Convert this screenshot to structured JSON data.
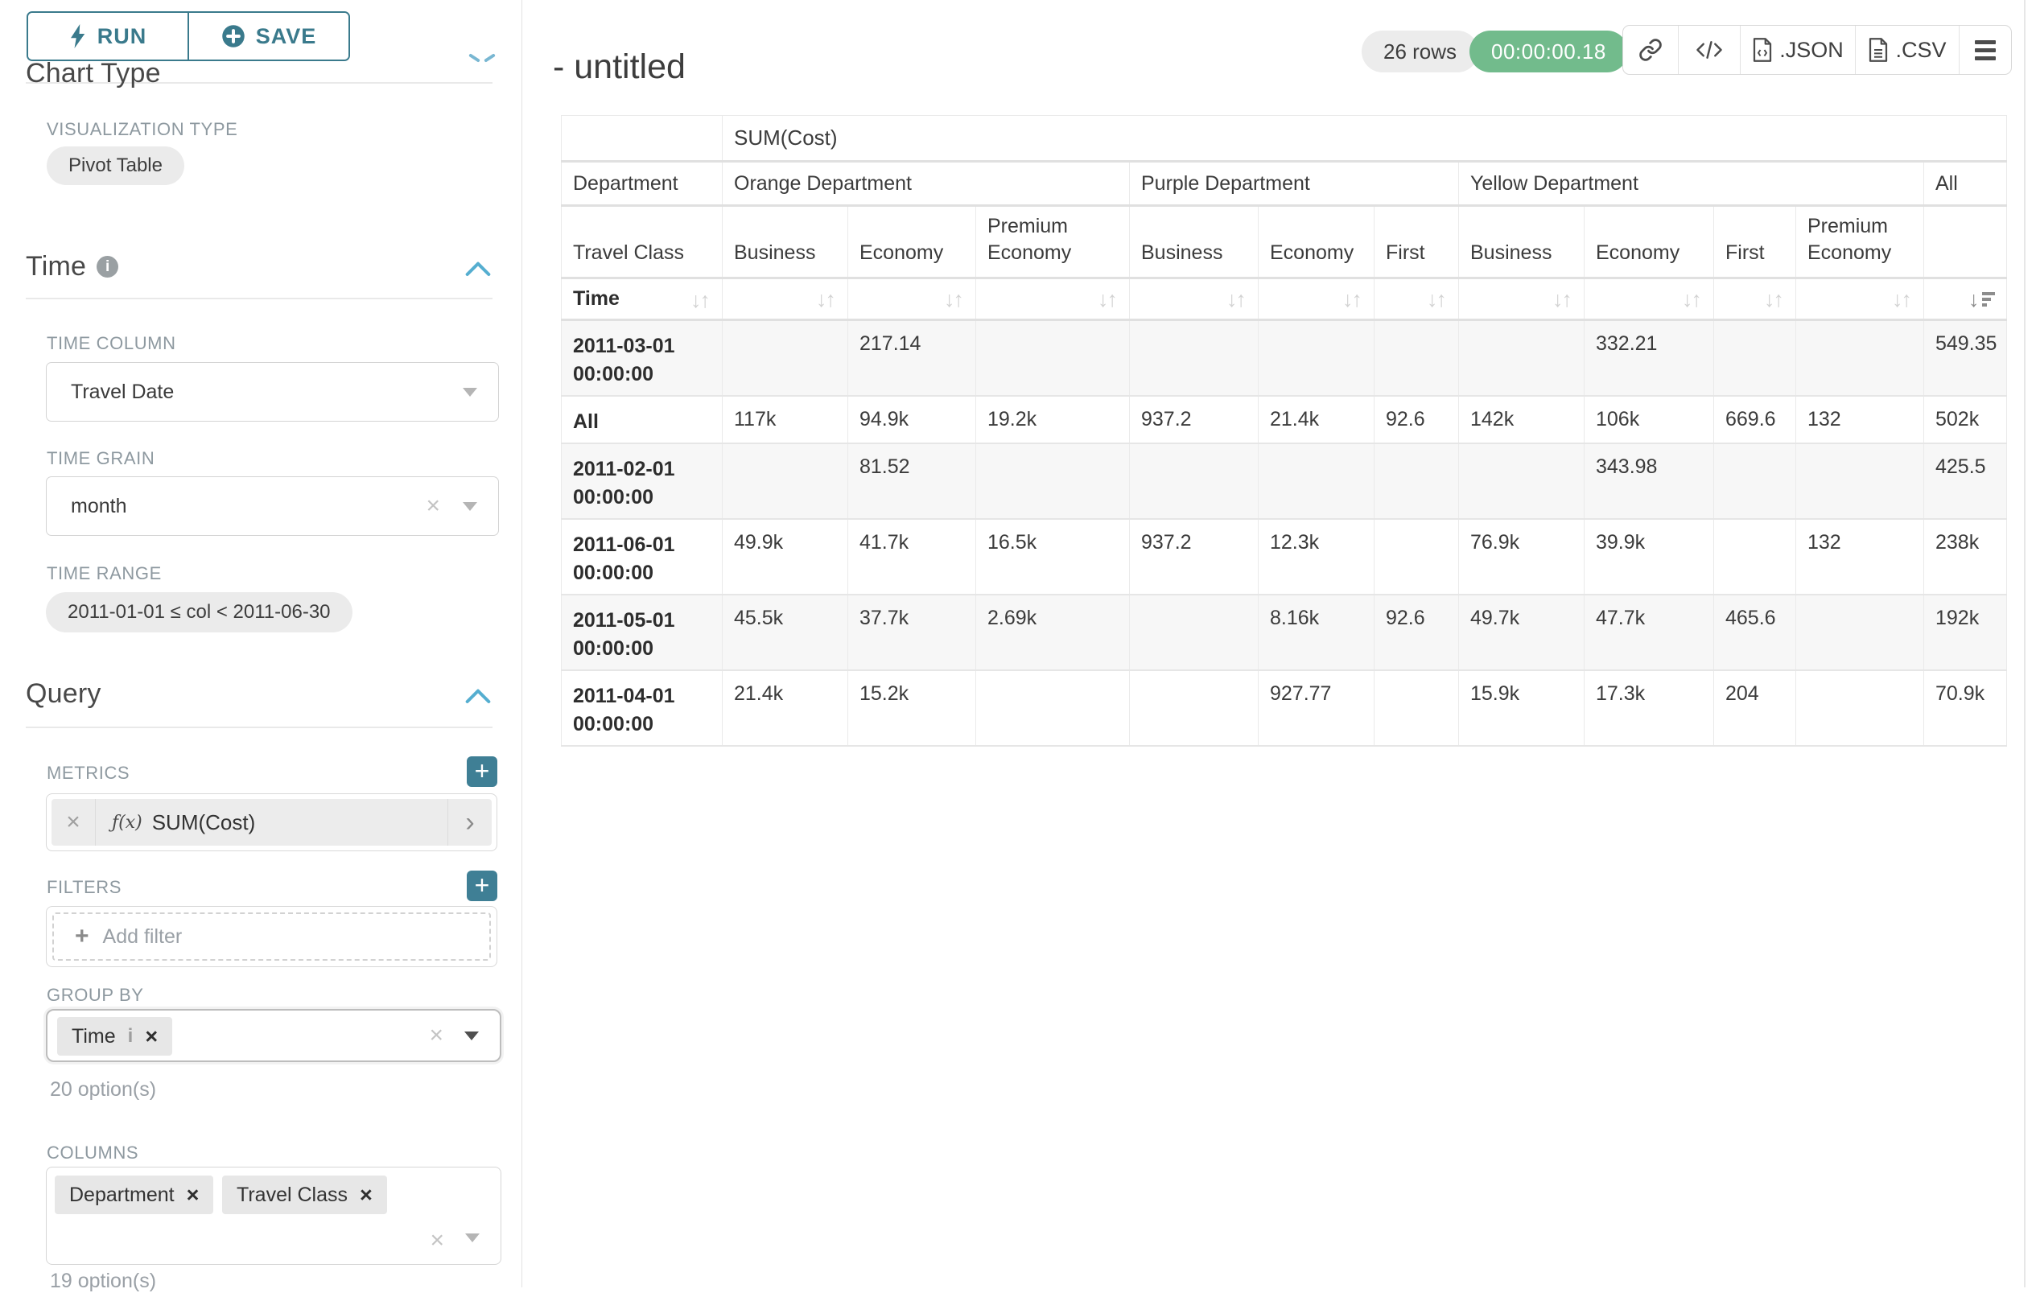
{
  "colors": {
    "accent_teal": "#3a7a8c",
    "timer_green": "#72bb8c",
    "section_chevron_blue": "#55aed0"
  },
  "sidebar": {
    "run_button": "RUN",
    "save_button": "SAVE",
    "chart_type": {
      "heading": "Chart Type",
      "viz_type_label": "VISUALIZATION TYPE",
      "viz_type_value": "Pivot Table"
    },
    "time": {
      "heading": "Time",
      "column_label": "TIME COLUMN",
      "column_value": "Travel Date",
      "grain_label": "TIME GRAIN",
      "grain_value": "month",
      "range_label": "TIME RANGE",
      "range_value": "2011-01-01 ≤ col < 2011-06-30"
    },
    "query": {
      "heading": "Query",
      "metrics_label": "METRICS",
      "metric_fx": "ƒ(x)",
      "metric_value": "SUM(Cost)",
      "filters_label": "FILTERS",
      "add_filter_placeholder": "Add filter",
      "group_by_label": "GROUP BY",
      "group_by_items": [
        {
          "label": "Time"
        }
      ],
      "group_by_hint": "20 option(s)",
      "columns_label": "COLUMNS",
      "columns_items": [
        {
          "label": "Department"
        },
        {
          "label": "Travel Class"
        }
      ],
      "columns_hint": "19 option(s)"
    }
  },
  "main": {
    "title": "- untitled",
    "row_count_badge": "26 rows",
    "timer_badge": "00:00:00.18",
    "export_json_label": ".JSON",
    "export_csv_label": ".CSV"
  },
  "pivot_table": {
    "metric_label": "SUM(Cost)",
    "row_dimension": "Department",
    "row_subdimension": "Travel Class",
    "time_label": "Time",
    "column_groups": [
      {
        "label": "Orange Department",
        "children": [
          "Business",
          "Economy",
          "Premium Economy"
        ]
      },
      {
        "label": "Purple Department",
        "children": [
          "Business",
          "Economy",
          "First"
        ]
      },
      {
        "label": "Yellow Department",
        "children": [
          "Business",
          "Economy",
          "First",
          "Premium Economy"
        ]
      },
      {
        "label": "All",
        "children": [
          ""
        ]
      }
    ],
    "rows": [
      {
        "label": "2011-03-01 00:00:00",
        "values": [
          "",
          "217.14",
          "",
          "",
          "",
          "",
          "",
          "332.21",
          "",
          "",
          "549.35"
        ]
      },
      {
        "label": "All",
        "values": [
          "117k",
          "94.9k",
          "19.2k",
          "937.2",
          "21.4k",
          "92.6",
          "142k",
          "106k",
          "669.6",
          "132",
          "502k"
        ]
      },
      {
        "label": "2011-02-01 00:00:00",
        "values": [
          "",
          "81.52",
          "",
          "",
          "",
          "",
          "",
          "343.98",
          "",
          "",
          "425.5"
        ]
      },
      {
        "label": "2011-06-01 00:00:00",
        "values": [
          "49.9k",
          "41.7k",
          "16.5k",
          "937.2",
          "12.3k",
          "",
          "76.9k",
          "39.9k",
          "",
          "132",
          "238k"
        ]
      },
      {
        "label": "2011-05-01 00:00:00",
        "values": [
          "45.5k",
          "37.7k",
          "2.69k",
          "",
          "8.16k",
          "92.6",
          "49.7k",
          "47.7k",
          "465.6",
          "",
          "192k"
        ]
      },
      {
        "label": "2011-04-01 00:00:00",
        "values": [
          "21.4k",
          "15.2k",
          "",
          "",
          "927.77",
          "",
          "15.9k",
          "17.3k",
          "204",
          "",
          "70.9k"
        ]
      }
    ]
  }
}
